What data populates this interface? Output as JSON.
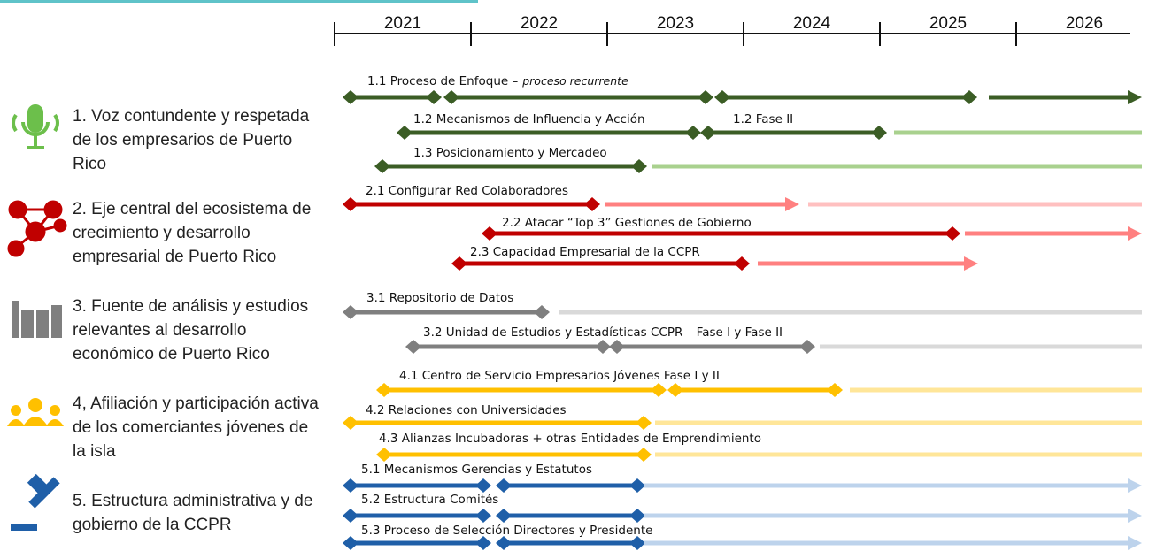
{
  "timeline": {
    "years": [
      "2021",
      "2022",
      "2023",
      "2024",
      "2025",
      "2026"
    ]
  },
  "goals": [
    {
      "lines": [
        "1. Voz contundente y respetada",
        "de los empresarios de Puerto",
        "Rico"
      ],
      "tasks": [
        {
          "label": "1.1 Proceso de Enfoque –",
          "note": "proceso recurrente"
        },
        {
          "label": "1.2 Mecanismos de Influencia y Acción",
          "phase_label": "1.2 Fase II"
        },
        {
          "label": "1.3 Posicionamiento y Mercadeo"
        }
      ]
    },
    {
      "lines": [
        "2. Eje central del ecosistema de",
        "crecimiento y desarrollo",
        "empresarial de Puerto Rico"
      ],
      "tasks": [
        {
          "label": "2.1 Configurar Red Colaboradores"
        },
        {
          "label": "2.2 Atacar “Top 3” Gestiones de Gobierno"
        },
        {
          "label": "2.3 Capacidad Empresarial de la CCPR"
        }
      ]
    },
    {
      "lines": [
        "3. Fuente de análisis y estudios",
        "relevantes al desarrollo",
        "económico de Puerto Rico"
      ],
      "tasks": [
        {
          "label": "3.1 Repositorio de Datos"
        },
        {
          "label": "3.2 Unidad de Estudios y Estadísticas CCPR – Fase I y Fase II"
        }
      ]
    },
    {
      "lines": [
        "4, Afiliación y participación activa",
        "de los comerciantes jóvenes de",
        "la isla"
      ],
      "tasks": [
        {
          "label": "4.1 Centro de Servicio Empresarios Jóvenes Fase I y II"
        },
        {
          "label": "4.2 Relaciones con Universidades"
        },
        {
          "label": "4.3 Alianzas Incubadoras + otras Entidades de Emprendimiento"
        }
      ]
    },
    {
      "lines": [
        "5. Estructura administrativa y de",
        "gobierno de la CCPR"
      ],
      "tasks": [
        {
          "label": "5.1 Mecanismos Gerencias y Estatutos"
        },
        {
          "label": "5.2 Estructura Comités"
        },
        {
          "label": "5.3 Proceso de Selección Directores y Presidente"
        }
      ]
    }
  ]
}
